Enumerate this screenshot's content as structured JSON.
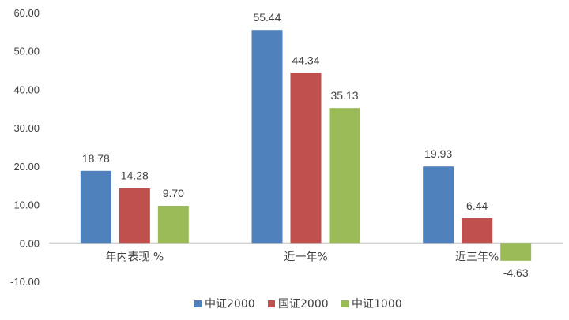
{
  "chart_data": {
    "type": "bar",
    "categories": [
      "年内表现 %",
      "近一年%",
      "近三年%"
    ],
    "series": [
      {
        "name": "中证2000",
        "values": [
          18.78,
          55.44,
          19.93
        ],
        "labels": [
          "18.78",
          "55.44",
          "19.93"
        ],
        "color": "#4f81bd"
      },
      {
        "name": "国证2000",
        "values": [
          14.28,
          44.34,
          6.44
        ],
        "labels": [
          "14.28",
          "44.34",
          "6.44"
        ],
        "color": "#c0504d"
      },
      {
        "name": "中证1000",
        "values": [
          9.7,
          35.13,
          -4.63
        ],
        "labels": [
          "9.70",
          "35.13",
          "-4.63"
        ],
        "color": "#9bbb59"
      }
    ],
    "ylim": [
      -10,
      60
    ],
    "yticks": [
      "-10.00",
      "0.00",
      "10.00",
      "20.00",
      "30.00",
      "40.00",
      "50.00",
      "60.00"
    ],
    "title": "",
    "xlabel": "",
    "ylabel": "",
    "grid": false,
    "legend_position": "bottom"
  }
}
